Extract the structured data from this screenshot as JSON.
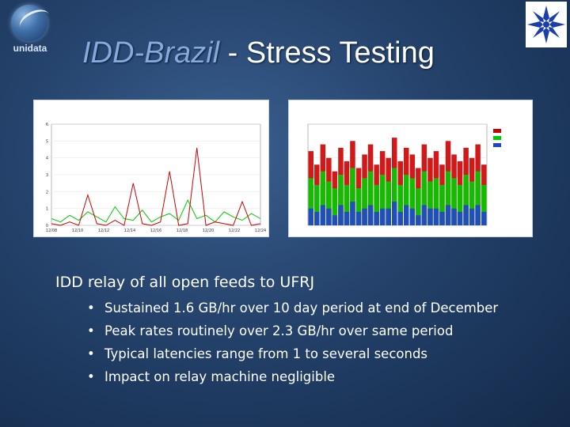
{
  "branding": {
    "left_logo_text": "unidata",
    "left_logo_icon": "unidata-globe-icon",
    "right_logo_icon": "snowflake-star-icon"
  },
  "slide": {
    "title_emphasis": "IDD-Brazil",
    "title_rest": " - Stress Testing",
    "main_point": "IDD relay of all open feeds to UFRJ",
    "bullets": [
      "Sustained 1.6 GB/hr over 10 day period at end of December",
      "Peak rates routinely over 2.3 GB/hr over same period",
      "Typical latencies range from 1 to several seconds",
      "Impact on relay machine negligible"
    ]
  },
  "colors": {
    "title_emphasis": "#86a9de",
    "background": "#24426b",
    "series_green": "#00cc00",
    "series_red": "#cc0000"
  },
  "chart_data": [
    {
      "type": "line",
      "title": "",
      "xlabel": "",
      "ylabel": "",
      "x_ticks": [
        "12/08",
        "12/10",
        "12/12",
        "12/14",
        "12/16",
        "12/18",
        "12/20",
        "12/22",
        "12/24"
      ],
      "y_ticks": [
        "0",
        "1",
        "2",
        "3",
        "4",
        "5",
        "6"
      ],
      "ylim": [
        0,
        6
      ],
      "series": [
        {
          "color": "#00cc00",
          "values": [
            0.4,
            0.2,
            0.6,
            0.3,
            0.8,
            0.5,
            0.2,
            1.1,
            0.4,
            0.3,
            0.9,
            0.2,
            0.5,
            0.7,
            0.3,
            1.5,
            0.4,
            0.6,
            0.2,
            0.8,
            0.5,
            0.3,
            0.7,
            0.4
          ]
        },
        {
          "color": "#cc0000",
          "values": [
            0.1,
            0.0,
            0.2,
            0.0,
            1.8,
            0.1,
            0.0,
            0.3,
            0.0,
            2.5,
            0.1,
            0.0,
            0.2,
            3.2,
            0.0,
            0.1,
            4.6,
            0.0,
            0.2,
            0.1,
            0.0,
            1.4,
            0.0,
            0.1
          ]
        }
      ]
    },
    {
      "type": "bar",
      "title": "",
      "xlabel": "",
      "ylabel": "",
      "legend": "right",
      "series": [
        {
          "color": "#cc0000",
          "values": [
            2.2,
            1.8,
            2.4,
            2.0,
            1.6,
            2.3,
            1.9,
            2.5,
            1.7,
            2.1,
            2.4,
            1.8,
            2.2,
            2.0,
            2.6,
            1.9,
            2.3,
            2.1,
            1.7,
            2.4,
            2.0,
            2.2,
            1.8,
            2.5,
            2.1,
            1.9,
            2.3,
            2.0,
            2.4,
            1.8
          ]
        },
        {
          "color": "#00cc00",
          "values": [
            1.4,
            1.2,
            1.6,
            1.3,
            1.1,
            1.5,
            1.2,
            1.7,
            1.1,
            1.4,
            1.6,
            1.2,
            1.5,
            1.3,
            1.7,
            1.2,
            1.5,
            1.4,
            1.1,
            1.6,
            1.3,
            1.4,
            1.2,
            1.6,
            1.4,
            1.2,
            1.5,
            1.3,
            1.6,
            1.2
          ]
        },
        {
          "color": "#2244cc",
          "values": [
            0.5,
            0.4,
            0.6,
            0.5,
            0.3,
            0.6,
            0.4,
            0.7,
            0.4,
            0.5,
            0.6,
            0.4,
            0.5,
            0.5,
            0.7,
            0.4,
            0.6,
            0.5,
            0.3,
            0.6,
            0.5,
            0.5,
            0.4,
            0.6,
            0.5,
            0.4,
            0.6,
            0.5,
            0.6,
            0.4
          ]
        }
      ],
      "ylim": [
        0,
        3
      ]
    }
  ]
}
